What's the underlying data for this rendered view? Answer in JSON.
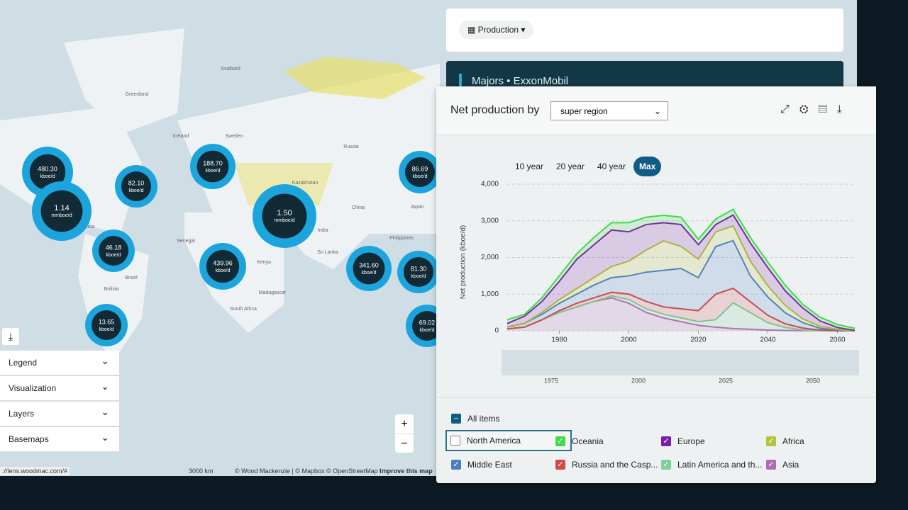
{
  "toolbar": {
    "button": "Production"
  },
  "banner": {
    "title": "Majors • ExxonMobil"
  },
  "map": {
    "bubbles": [
      {
        "value": "480.30",
        "unit": "kboe/d"
      },
      {
        "value": "1.14",
        "unit": "mmboe/d"
      },
      {
        "value": "82.10",
        "unit": "kboe/d"
      },
      {
        "value": "188.70",
        "unit": "kboe/d"
      },
      {
        "value": "1.50",
        "unit": "mmboe/d"
      },
      {
        "value": "46.18",
        "unit": "kboe/d"
      },
      {
        "value": "439.96",
        "unit": "kboe/d"
      },
      {
        "value": "13.65",
        "unit": "kboe/d"
      },
      {
        "value": "341.60",
        "unit": "kboe/d"
      },
      {
        "value": "86.69",
        "unit": "kboe/d"
      },
      {
        "value": "81.30",
        "unit": "kboe/d"
      },
      {
        "value": "69.02",
        "unit": "kboe/d"
      }
    ],
    "labels": [
      "Greenland",
      "Svalbard",
      "Iceland",
      "Sweden",
      "Russia",
      "Kazakhstan",
      "China",
      "India",
      "Japan",
      "Kenya",
      "Brazil",
      "Bolivia",
      "South Africa",
      "Madagascar",
      "Sri Lanka",
      "Philippines",
      "Cuba",
      "Senegal"
    ],
    "accordion": [
      "Legend",
      "Visualization",
      "Layers",
      "Basemaps"
    ],
    "zoom_in": "+",
    "zoom_out": "−",
    "scale": "3000 km",
    "attribution": "© Wood Mackenzie | © Mapbox © OpenStreetMap",
    "improve": "Improve this map",
    "url": "://lens.woodmac.com/#"
  },
  "panel": {
    "heading": "Net production by",
    "dropdown": "super region",
    "ranges": [
      "10 year",
      "20 year",
      "40 year",
      "Max"
    ],
    "active_range": 3,
    "navigator_ticks": [
      1975,
      2000,
      2025,
      2050
    ],
    "all_items": "All items",
    "legend": [
      {
        "name": "North America",
        "checked": false,
        "color": "#ffffff"
      }
    ]
  },
  "chart_data": {
    "type": "stacked-area",
    "y_label": "Net production (kboe/d)",
    "x": [
      1965,
      1970,
      1975,
      1980,
      1985,
      1990,
      1995,
      2000,
      2005,
      2010,
      2015,
      2020,
      2025,
      2030,
      2035,
      2040,
      2045,
      2050,
      2055,
      2060,
      2065
    ],
    "xlim": [
      1965,
      2065
    ],
    "xticks": [
      1980,
      2000,
      2020,
      2040,
      2060
    ],
    "ylim": [
      0,
      4000
    ],
    "yticks": [
      0,
      {
        "value": 1000,
        "label": "1,000"
      },
      {
        "value": 2000,
        "label": "2,000"
      },
      {
        "value": 3000,
        "label": "3,000"
      },
      {
        "value": 4000,
        "label": "4,000"
      }
    ],
    "grid": true,
    "series": [
      {
        "name": "Asia",
        "color": "#b06cb4",
        "values": [
          50,
          100,
          300,
          500,
          650,
          800,
          900,
          750,
          500,
          350,
          250,
          150,
          100,
          60,
          40,
          20,
          10,
          5,
          0,
          0,
          0
        ]
      },
      {
        "name": "Latin America and th...",
        "color": "#7fcf9a",
        "values": [
          0,
          0,
          0,
          0,
          0,
          0,
          50,
          100,
          100,
          100,
          100,
          100,
          200,
          700,
          450,
          200,
          80,
          20,
          0,
          0,
          0
        ]
      },
      {
        "name": "Russia and the Casp...",
        "color": "#cf4a4a",
        "values": [
          0,
          0,
          0,
          50,
          100,
          100,
          100,
          150,
          200,
          200,
          250,
          300,
          700,
          400,
          300,
          200,
          100,
          50,
          20,
          0,
          0
        ]
      },
      {
        "name": "Middle East",
        "color": "#4a7fc0",
        "values": [
          50,
          100,
          150,
          200,
          250,
          350,
          400,
          500,
          800,
          1000,
          1100,
          900,
          1300,
          1300,
          700,
          500,
          300,
          150,
          50,
          20,
          0
        ]
      },
      {
        "name": "Africa",
        "color": "#b5c23a",
        "values": [
          0,
          0,
          50,
          100,
          150,
          200,
          300,
          400,
          600,
          800,
          600,
          500,
          400,
          400,
          400,
          300,
          200,
          100,
          50,
          20,
          0
        ]
      },
      {
        "name": "Europe",
        "color": "#7a1fa8",
        "values": [
          100,
          200,
          300,
          500,
          800,
          900,
          1000,
          800,
          700,
          500,
          600,
          400,
          200,
          300,
          500,
          500,
          400,
          300,
          150,
          50,
          10
        ]
      },
      {
        "name": "Oceania",
        "color": "#3fdc4a",
        "values": [
          100,
          50,
          100,
          150,
          150,
          200,
          200,
          250,
          200,
          200,
          200,
          150,
          150,
          150,
          150,
          150,
          150,
          100,
          100,
          80,
          60
        ]
      }
    ]
  }
}
